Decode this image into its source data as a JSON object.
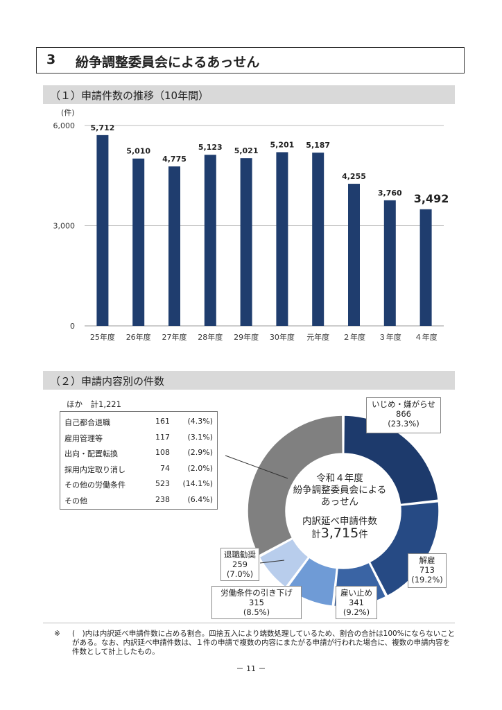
{
  "section": {
    "number": "3",
    "title": "紛争調整委員会によるあっせん"
  },
  "sub1": {
    "title": "（１）申請件数の推移（10年間）"
  },
  "sub2": {
    "title": "（２）申請内容別の件数"
  },
  "chart_data": [
    {
      "type": "bar",
      "unit_label": "(件)",
      "categories": [
        "25年度",
        "26年度",
        "27年度",
        "28年度",
        "29年度",
        "30年度",
        "元年度",
        "２年度",
        "３年度",
        "４年度"
      ],
      "values": [
        5712,
        5010,
        4775,
        5123,
        5021,
        5201,
        5187,
        4255,
        3760,
        3492
      ],
      "value_labels": [
        "5,712",
        "5,010",
        "4,775",
        "5,123",
        "5,021",
        "5,201",
        "5,187",
        "4,255",
        "3,760",
        "3,492"
      ],
      "yticks": [
        0,
        3000,
        6000
      ],
      "ytick_labels": [
        "0",
        "3,000",
        "6,000"
      ],
      "ylim": [
        0,
        6000
      ],
      "color": "#1f3d6e",
      "grid": true
    },
    {
      "type": "pie",
      "donut": true,
      "center_lines": [
        "令和４年度",
        "紛争調整委員会による",
        "あっせん",
        "内訳延べ申請件数"
      ],
      "total_prefix": "計",
      "total_value": "3,715",
      "total_suffix": "件",
      "slices": [
        {
          "label": "いじめ・嫌がらせ",
          "count": "866",
          "pct": "(23.3%)",
          "value": 866,
          "color": "#1d3a6c"
        },
        {
          "label": "解雇",
          "count": "713",
          "pct": "(19.2%)",
          "value": 713,
          "color": "#264a84"
        },
        {
          "label": "雇い止め",
          "count": "341",
          "pct": "(9.2%)",
          "value": 341,
          "color": "#3a64a4"
        },
        {
          "label": "労働条件の引き下げ",
          "count": "315",
          "pct": "(8.5%)",
          "value": 315,
          "color": "#6f9bd6"
        },
        {
          "label": "退職勧奨",
          "count": "259",
          "pct": "(7.0%)",
          "value": 259,
          "color": "#b8cdec"
        },
        {
          "label": "ほか",
          "count": "1,221",
          "pct": "",
          "value": 1221,
          "color": "#808080"
        }
      ]
    }
  ],
  "others": {
    "heading": "ほか　計1,221",
    "rows": [
      {
        "name": "自己都合退職",
        "count": "161",
        "pct": "(4.3%)"
      },
      {
        "name": "雇用管理等",
        "count": "117",
        "pct": "(3.1%)"
      },
      {
        "name": "出向・配置転換",
        "count": "108",
        "pct": "(2.9%)"
      },
      {
        "name": "採用内定取り消し",
        "count": "74",
        "pct": "(2.0%)"
      },
      {
        "name": "その他の労働条件",
        "count": "523",
        "pct": "(14.1%)"
      },
      {
        "name": "その他",
        "count": "238",
        "pct": "(6.4%)"
      }
    ]
  },
  "note": {
    "mark": "※",
    "text": "(　)内は内訳延べ申請件数に占める割合。四捨五入により端数処理しているため、割合の合計は100%にならないことがある。なお、内訳延べ申請件数は、１件の申請で複数の内容にまたがる申請が行われた場合に、複数の申請内容を件数として計上したもの。"
  },
  "page_number": "－ 11 －"
}
